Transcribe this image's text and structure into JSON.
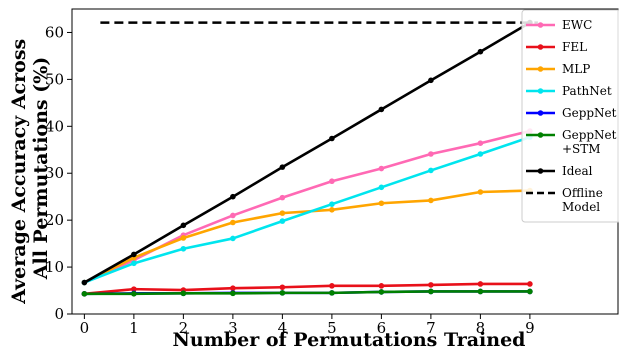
{
  "chart_data": {
    "type": "line",
    "title": "",
    "xlabel": "Number of Permutations Trained",
    "ylabel_lines": [
      "Average Accuracy Across",
      "All Permutations (%)"
    ],
    "x": [
      0,
      1,
      2,
      3,
      4,
      5,
      6,
      7,
      8,
      9
    ],
    "xlim": [
      -0.25,
      10.8
    ],
    "ylim": [
      0,
      65
    ],
    "xticks": [
      "0",
      "1",
      "2",
      "3",
      "4",
      "5",
      "6",
      "7",
      "8",
      "9"
    ],
    "yticks": [
      "0",
      "10",
      "20",
      "30",
      "40",
      "50",
      "60"
    ],
    "grid": false,
    "legend_position": "right",
    "series": [
      {
        "name": "EWC",
        "color": "#ff69b4",
        "values": [
          6.7,
          11.5,
          16.8,
          21.0,
          24.8,
          28.3,
          31.0,
          34.1,
          36.4,
          39.0
        ]
      },
      {
        "name": "FEL",
        "color": "#e8101a",
        "values": [
          4.3,
          5.3,
          5.1,
          5.5,
          5.7,
          6.0,
          6.0,
          6.2,
          6.4,
          6.4
        ]
      },
      {
        "name": "MLP",
        "color": "#ffa500",
        "values": [
          6.7,
          12.0,
          16.2,
          19.5,
          21.5,
          22.2,
          23.6,
          24.2,
          26.0,
          26.3
        ]
      },
      {
        "name": "PathNet",
        "color": "#00e5ee",
        "values": [
          6.7,
          10.8,
          13.9,
          16.1,
          19.8,
          23.4,
          27.0,
          30.6,
          34.1,
          37.7
        ]
      },
      {
        "name": "GeppNet",
        "color": "#0000ff",
        "values": [
          4.3,
          4.4,
          4.4,
          4.5,
          4.5,
          4.5,
          4.7,
          4.8,
          4.8,
          4.8
        ]
      },
      {
        "name": "GeppNet\n+STM",
        "color": "#008000",
        "values": [
          4.3,
          4.3,
          4.4,
          4.4,
          4.5,
          4.5,
          4.7,
          4.8,
          4.8,
          4.8
        ]
      },
      {
        "name": "Ideal",
        "color": "#000000",
        "values": [
          6.7,
          12.7,
          18.9,
          25.0,
          31.3,
          37.4,
          43.6,
          49.8,
          55.9,
          62.1
        ]
      }
    ],
    "reference_lines": [
      {
        "name": "Offline\nModel",
        "color": "#000000",
        "dash": true,
        "value": 62.1
      }
    ]
  }
}
